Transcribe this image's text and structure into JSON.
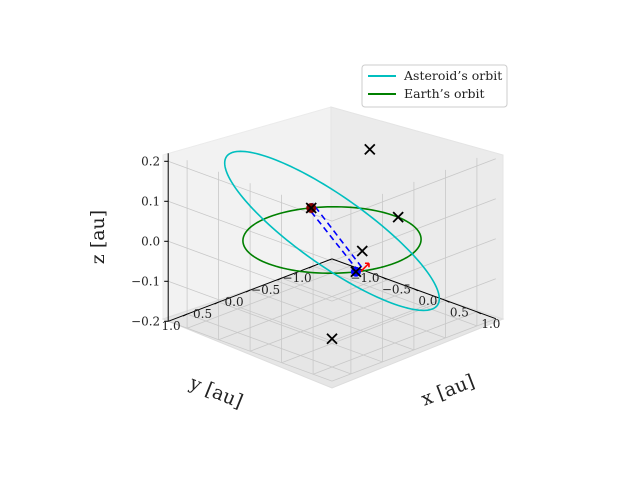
{
  "chart_data": {
    "type": "line",
    "projection": "3d",
    "title": "",
    "xlabel": "x [au]",
    "ylabel": "y [au]",
    "zlabel": "z [au]",
    "xlim": [
      -1.3,
      1.3
    ],
    "ylim": [
      -1.3,
      1.3
    ],
    "zlim": [
      -0.2,
      0.22
    ],
    "x_ticks": [
      "−1.0",
      "−0.5",
      "0.0",
      "0.5",
      "1.0"
    ],
    "y_ticks": [
      "1.0",
      "0.5",
      "0.0",
      "−0.5",
      "−1.0"
    ],
    "z_ticks": [
      "0.2",
      "0.1",
      "0.0",
      "−0.1",
      "−0.2"
    ],
    "grid": true,
    "legend_position": "top-right",
    "legend": [
      {
        "label": "Asteroid’s orbit",
        "color": "#00bfbf"
      },
      {
        "label": "Earth’s orbit",
        "color": "#008000"
      }
    ],
    "series": [
      {
        "name": "Asteroid’s orbit",
        "kind": "ellipse",
        "color": "#00bfbf",
        "a": 1.25,
        "e": 0.22,
        "inclination_deg": 9,
        "node_deg": 45
      },
      {
        "name": "Earth’s orbit",
        "kind": "circle",
        "color": "#008000",
        "radius": 1.0,
        "z": 0.0
      }
    ],
    "markers": [
      {
        "symbol": "x",
        "color": "#000000",
        "points": [
          {
            "x": -0.85,
            "y": -0.52,
            "z": 0.0
          },
          {
            "x": 0.48,
            "y": 0.0,
            "z": 0.0
          },
          {
            "x": 0.87,
            "y": 0.49,
            "z": 0.0
          },
          {
            "x": 0.05,
            "y": -1.0,
            "z": 0.0
          },
          {
            "x": -0.6,
            "y": -1.2,
            "z": 0.12
          },
          {
            "x": 1.08,
            "y": 1.08,
            "z": -0.12
          }
        ]
      }
    ],
    "dashed_lines": [
      {
        "color": "#0000ff",
        "from": {
          "x": 0.88,
          "y": 0.46,
          "z": 0.0
        },
        "to": {
          "x": -0.88,
          "y": -0.5,
          "z": 0.0
        }
      },
      {
        "color": "#0000ff",
        "from": {
          "x": 0.92,
          "y": 0.45,
          "z": 0.012
        },
        "to": {
          "x": -0.84,
          "y": -0.53,
          "z": 0.012
        }
      }
    ],
    "points": [
      {
        "x": 0.87,
        "y": 0.49,
        "z": 0.0,
        "color": "#0000ff"
      },
      {
        "x": -0.85,
        "y": -0.52,
        "z": 0.0,
        "color": "#800000"
      }
    ],
    "arrow": {
      "color": "#ff0000",
      "at": {
        "x": 0.9,
        "y": 0.44,
        "z": 0.0
      }
    }
  }
}
